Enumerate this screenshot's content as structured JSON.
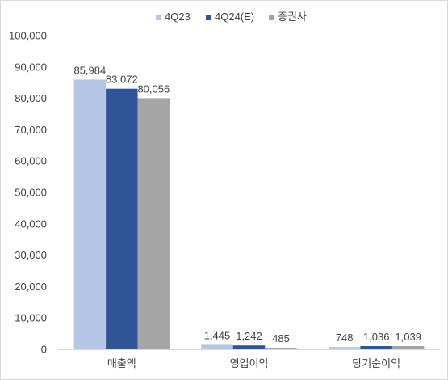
{
  "chart_data": {
    "type": "bar",
    "title": "",
    "xlabel": "",
    "ylabel": "",
    "categories": [
      "매출액",
      "영업이익",
      "당기순이익"
    ],
    "series": [
      {
        "name": "4Q23",
        "values": [
          85984,
          1445,
          748
        ],
        "labels": [
          "85,984",
          "1,445",
          "748"
        ],
        "color": "#b4c7e7"
      },
      {
        "name": "4Q24(E)",
        "values": [
          83072,
          1242,
          1036
        ],
        "labels": [
          "83,072",
          "1,242",
          "1,036"
        ],
        "color": "#2f5597"
      },
      {
        "name": "증권사",
        "values": [
          80056,
          485,
          1039
        ],
        "labels": [
          "80,056",
          "485",
          "1,039"
        ],
        "color": "#a5a5a5"
      }
    ],
    "ylim": [
      0,
      100000
    ],
    "yticks": [
      0,
      10000,
      20000,
      30000,
      40000,
      50000,
      60000,
      70000,
      80000,
      90000,
      100000
    ],
    "ytick_labels": [
      "0",
      "10,000",
      "20,000",
      "30,000",
      "40,000",
      "50,000",
      "60,000",
      "70,000",
      "80,000",
      "90,000",
      "100,000"
    ],
    "grid": false,
    "legend_position": "top-center"
  }
}
